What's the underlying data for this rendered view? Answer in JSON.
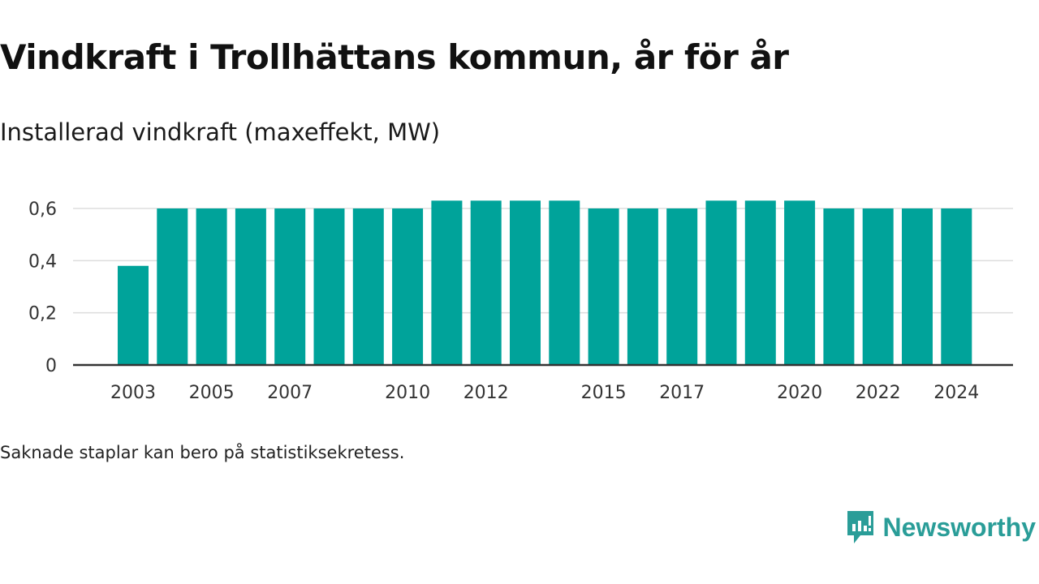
{
  "title": "Vindkraft i Trollhättans kommun, år för år",
  "subtitle": "Installerad vindkraft (maxeffekt, MW)",
  "footnote": "Saknade staplar kan bero på statistiksekretess.",
  "brand": {
    "name": "Newsworthy",
    "icon": "newsworthy-logo-icon",
    "color": "#2a9d98"
  },
  "colors": {
    "bar": "#00a39a",
    "grid": "#dddddd",
    "axis": "#333333"
  },
  "chart_data": {
    "type": "bar",
    "title": "",
    "xlabel": "",
    "ylabel": "",
    "categories": [
      "2003",
      "2004",
      "2005",
      "2006",
      "2007",
      "2008",
      "2009",
      "2010",
      "2011",
      "2012",
      "2013",
      "2014",
      "2015",
      "2016",
      "2017",
      "2018",
      "2019",
      "2020",
      "2021",
      "2022",
      "2023",
      "2024"
    ],
    "values": [
      0.38,
      0.6,
      0.6,
      0.6,
      0.6,
      0.6,
      0.6,
      0.6,
      0.63,
      0.63,
      0.63,
      0.63,
      0.6,
      0.6,
      0.6,
      0.63,
      0.63,
      0.63,
      0.6,
      0.6,
      0.6,
      0.6
    ],
    "x_tick_labels": [
      "2003",
      "2005",
      "2007",
      "2010",
      "2012",
      "2015",
      "2017",
      "2020",
      "2022",
      "2024"
    ],
    "y_ticks": [
      0,
      0.2,
      0.4,
      0.6
    ],
    "y_tick_labels": [
      "0",
      "0,2",
      "0,4",
      "0,6"
    ],
    "ylim": [
      0,
      0.6
    ],
    "grid": true,
    "legend": "none"
  }
}
